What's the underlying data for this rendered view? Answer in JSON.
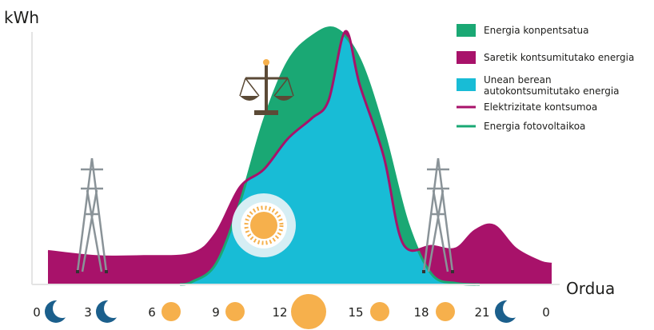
{
  "chart_data": {
    "type": "area",
    "ylabel": "kWh",
    "xlabel": "Ordua",
    "x_ticks": [
      "0",
      "3",
      "6",
      "9",
      "12",
      "15",
      "18",
      "21",
      "0"
    ],
    "tick_icons": [
      "moon",
      "moon",
      "sun",
      "sun",
      "sun-large",
      "sun",
      "sun",
      "moon",
      ""
    ],
    "legend": [
      {
        "label": "Energia konpentsatua",
        "kind": "square",
        "color": "#1aa874"
      },
      {
        "label": "Saretik kontsumitutako energia",
        "kind": "square",
        "color": "#a8126a"
      },
      {
        "label": "Unean berean\nautokontsumitutako energia",
        "kind": "square",
        "color": "#18bcd6"
      },
      {
        "label": "Elektrizitate kontsumoa",
        "kind": "line",
        "color": "#a8126a"
      },
      {
        "label": "Energia fotovoltaikoa",
        "kind": "line",
        "color": "#1aa874"
      }
    ],
    "series": [
      {
        "name": "Energia fotovoltaikoa",
        "x": [
          5.5,
          6,
          7,
          8,
          9,
          10,
          11,
          12,
          13,
          14,
          15,
          16,
          17,
          18
        ],
        "values": [
          0,
          0.01,
          0.08,
          0.32,
          0.64,
          0.87,
          0.97,
          1.0,
          0.88,
          0.6,
          0.24,
          0.04,
          0.005,
          0
        ]
      },
      {
        "name": "Elektrizitate kontsumoa",
        "x": [
          0,
          2,
          4,
          6,
          7,
          8,
          9,
          10,
          11,
          11.7,
          12.4,
          13,
          14,
          14.8,
          16,
          17,
          17.8,
          18.6,
          19.5,
          20.5,
          21
        ],
        "values": [
          0.13,
          0.11,
          0.11,
          0.12,
          0.2,
          0.38,
          0.45,
          0.57,
          0.65,
          0.72,
          0.99,
          0.78,
          0.5,
          0.16,
          0.15,
          0.14,
          0.21,
          0.23,
          0.14,
          0.09,
          0.08
        ]
      }
    ],
    "colors": {
      "pv": "#1aa874",
      "grid": "#a8126a",
      "self": "#18bcd6",
      "tower": "#8a9398",
      "axis": "#e4e4e4",
      "sun": "#f6b04c",
      "moon": "#1b5f8c"
    },
    "icons": [
      "transmission-tower-left",
      "scales-icon",
      "sun-center",
      "transmission-tower-right"
    ]
  }
}
